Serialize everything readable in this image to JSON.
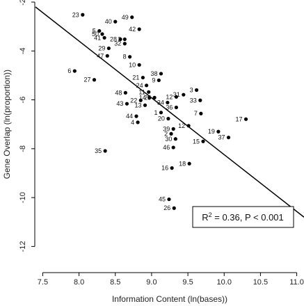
{
  "chart_data": {
    "type": "scatter",
    "title": "",
    "xlabel": "Information Content (ln(bases))",
    "ylabel": "Gene Overlap (ln(proportion))",
    "xlim": [
      7.4,
      11.1
    ],
    "ylim": [
      -12.7,
      -2.0
    ],
    "x_ticks": [
      "7.5",
      "8.0",
      "8.5",
      "9.0",
      "9.5",
      "10.0",
      "10.5",
      "11.0"
    ],
    "y_ticks": [
      "-2",
      "-4",
      "-6",
      "-8",
      "-10",
      "-12"
    ],
    "grid": false,
    "regression": {
      "x": [
        7.4,
        11.1
      ],
      "y": [
        -2.2,
        -10.8
      ]
    },
    "annotation": {
      "r2_prefix": "R",
      "r2_sup": "2",
      "r2_rest": " = 0.36, P < 0.001"
    },
    "marker_color": "#000000",
    "points": [
      {
        "label": "23",
        "x": 8.05,
        "y": -2.52
      },
      {
        "label": "40",
        "x": 8.5,
        "y": -2.8
      },
      {
        "label": "49",
        "x": 8.73,
        "y": -2.62
      },
      {
        "label": "5",
        "x": 8.28,
        "y": -3.18
      },
      {
        "label": "50",
        "x": 8.32,
        "y": -3.31
      },
      {
        "label": "42",
        "x": 8.83,
        "y": -3.11
      },
      {
        "label": "41",
        "x": 8.35,
        "y": -3.46
      },
      {
        "label": "28",
        "x": 8.57,
        "y": -3.52
      },
      {
        "label": "3",
        "x": 8.63,
        "y": -3.52
      },
      {
        "label": "32",
        "x": 8.63,
        "y": -3.7
      },
      {
        "label": "29",
        "x": 8.41,
        "y": -3.89
      },
      {
        "label": "47",
        "x": 8.39,
        "y": -4.2
      },
      {
        "label": "8",
        "x": 8.7,
        "y": -4.24
      },
      {
        "label": "10",
        "x": 8.83,
        "y": -4.57
      },
      {
        "label": "6",
        "x": 7.94,
        "y": -4.82
      },
      {
        "label": "27",
        "x": 8.21,
        "y": -5.18
      },
      {
        "label": "38",
        "x": 9.13,
        "y": -4.93
      },
      {
        "label": "21",
        "x": 8.88,
        "y": -5.09
      },
      {
        "label": "9",
        "x": 9.1,
        "y": -5.2
      },
      {
        "label": "24",
        "x": 8.93,
        "y": -5.41
      },
      {
        "label": "11",
        "x": 8.96,
        "y": -5.68
      },
      {
        "label": "3",
        "x": 9.62,
        "y": -5.6
      },
      {
        "label": "31",
        "x": 9.44,
        "y": -5.79
      },
      {
        "label": "25",
        "x": 9.04,
        "y": -5.91
      },
      {
        "label": "14",
        "x": 8.97,
        "y": -5.91
      },
      {
        "label": "12",
        "x": 9.34,
        "y": -5.88
      },
      {
        "label": "48",
        "x": 8.64,
        "y": -5.71
      },
      {
        "label": "22",
        "x": 8.85,
        "y": -6.02
      },
      {
        "label": "34",
        "x": 9.22,
        "y": -6.11
      },
      {
        "label": "33",
        "x": 9.67,
        "y": -6.02
      },
      {
        "label": "43",
        "x": 8.66,
        "y": -6.16
      },
      {
        "label": "13",
        "x": 8.91,
        "y": -6.22
      },
      {
        "label": "36",
        "x": 9.34,
        "y": -6.31
      },
      {
        "label": "1",
        "x": 9.13,
        "y": -6.52
      },
      {
        "label": "7",
        "x": 9.68,
        "y": -6.56
      },
      {
        "label": "44",
        "x": 8.79,
        "y": -6.67
      },
      {
        "label": "20",
        "x": 9.23,
        "y": -6.77
      },
      {
        "label": "4",
        "x": 8.81,
        "y": -6.92
      },
      {
        "label": "17",
        "x": 10.3,
        "y": -6.79
      },
      {
        "label": "12",
        "x": 9.51,
        "y": -7.06
      },
      {
        "label": "39",
        "x": 9.3,
        "y": -7.19
      },
      {
        "label": "2",
        "x": 9.27,
        "y": -7.39
      },
      {
        "label": "19",
        "x": 9.92,
        "y": -7.3
      },
      {
        "label": "30",
        "x": 9.33,
        "y": -7.6
      },
      {
        "label": "37",
        "x": 10.06,
        "y": -7.54
      },
      {
        "label": "15",
        "x": 9.71,
        "y": -7.7
      },
      {
        "label": "46",
        "x": 9.3,
        "y": -7.95
      },
      {
        "label": "35",
        "x": 8.36,
        "y": -8.09
      },
      {
        "label": "18",
        "x": 9.52,
        "y": -8.61
      },
      {
        "label": "16",
        "x": 9.28,
        "y": -8.79
      },
      {
        "label": "45",
        "x": 9.24,
        "y": -10.07
      },
      {
        "label": "26",
        "x": 9.31,
        "y": -10.43
      }
    ]
  }
}
